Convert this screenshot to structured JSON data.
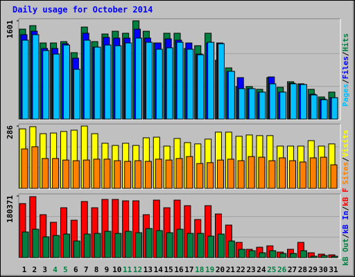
{
  "chart_data": {
    "type": "bar",
    "title": "Daily usage for October 2014",
    "title_color": "#0000ff",
    "legend_separator": "/",
    "grid": true,
    "categories": [
      "1",
      "2",
      "3",
      "4",
      "5",
      "6",
      "7",
      "8",
      "9",
      "10",
      "11",
      "12",
      "13",
      "14",
      "15",
      "16",
      "17",
      "18",
      "19",
      "20",
      "21",
      "22",
      "23",
      "24",
      "25",
      "26",
      "27",
      "28",
      "29",
      "30",
      "31"
    ],
    "weekend": [
      false,
      false,
      false,
      true,
      true,
      false,
      false,
      false,
      false,
      false,
      true,
      true,
      false,
      false,
      false,
      false,
      false,
      true,
      true,
      false,
      false,
      false,
      false,
      false,
      true,
      true,
      false,
      false,
      false,
      false,
      false
    ],
    "weekday_color": "#000000",
    "weekend_color": "#008040",
    "panels": [
      {
        "ylim": [
          0,
          1601
        ],
        "yticks": [
          1601
        ],
        "series": [
          {
            "name": "Hits",
            "color": "#008040",
            "values": [
              1465,
              1522,
              1240,
              1240,
              1262,
              1082,
              1499,
              1262,
              1386,
              1431,
              1398,
              1601,
              1431,
              1240,
              1398,
              1398,
              1150,
              1195,
              1398,
              958,
              834,
              530,
              530,
              485,
              676,
              518,
              609,
              575,
              485,
              361,
              440
            ]
          },
          {
            "name": "Files",
            "color": "#0000ff",
            "values": [
              1375,
              1431,
              1150,
              1150,
              1228,
              992,
              1398,
              1172,
              1330,
              1319,
              1319,
              1465,
              1319,
              1240,
              1307,
              1285,
              1240,
              1059,
              1240,
              1240,
              778,
              676,
              496,
              440,
              687,
              440,
              586,
              564,
              406,
              327,
              349
            ]
          },
          {
            "name": "Pages",
            "color": "#00c0ff",
            "values": [
              1285,
              1375,
              1116,
              1059,
              1206,
              811,
              1285,
              1172,
              1206,
              1195,
              1240,
              1319,
              1251,
              1138,
              1161,
              1251,
              1138,
              1048,
              1251,
              1228,
              778,
              496,
              496,
              440,
              575,
              440,
              575,
              564,
              394,
              316,
              349
            ]
          }
        ]
      },
      {
        "ylim": [
          0,
          286
        ],
        "yticks": [
          286
        ],
        "series": [
          {
            "name": "Visits",
            "color": "#ffff00",
            "values": [
              273,
              283,
              251,
              254,
              261,
              267,
              286,
              251,
              207,
              197,
              207,
              197,
              232,
              235,
              194,
              229,
              210,
              204,
              226,
              258,
              258,
              239,
              245,
              242,
              242,
              194,
              194,
              194,
              219,
              194,
              204
            ]
          },
          {
            "name": "Sites",
            "color": "#ff8000",
            "values": [
              181,
              191,
              137,
              137,
              130,
              127,
              130,
              134,
              134,
              127,
              124,
              127,
              124,
              134,
              130,
              137,
              146,
              114,
              118,
              130,
              134,
              127,
              146,
              143,
              127,
              140,
              127,
              121,
              140,
              143,
              108
            ]
          }
        ]
      },
      {
        "ylim": [
          0,
          180371
        ],
        "yticks": [
          180371
        ],
        "series": [
          {
            "name": "kB F",
            "color": "#ff0000",
            "values": [
              158106,
              178376,
              125674,
              103377,
              145944,
              109458,
              164187,
              145944,
              170268,
              170268,
              166214,
              166214,
              125674,
              168241,
              145944,
              168241,
              152025,
              111485,
              152025,
              127701,
              95269,
              44594,
              24324,
              30405,
              34459,
              16216,
              24324,
              44594,
              14189,
              10135,
              8108
            ]
          },
          {
            "name": "kB In",
            "color": "#0000ff",
            "values": [
              0,
              0,
              0,
              0,
              0,
              0,
              0,
              0,
              0,
              0,
              0,
              0,
              0,
              0,
              0,
              0,
              0,
              0,
              0,
              0,
              0,
              0,
              0,
              0,
              0,
              0,
              0,
              0,
              0,
              0,
              0
            ]
          },
          {
            "name": "kB Out",
            "color": "#008040",
            "values": [
              74999,
              83107,
              60810,
              64864,
              68918,
              48648,
              68918,
              70945,
              77026,
              70945,
              77026,
              72972,
              85134,
              79053,
              72972,
              83107,
              70945,
              70945,
              62837,
              68918,
              48648,
              24324,
              20270,
              14189,
              20270,
              12162,
              12162,
              20270,
              4054,
              6081,
              4054
            ]
          }
        ]
      }
    ]
  }
}
